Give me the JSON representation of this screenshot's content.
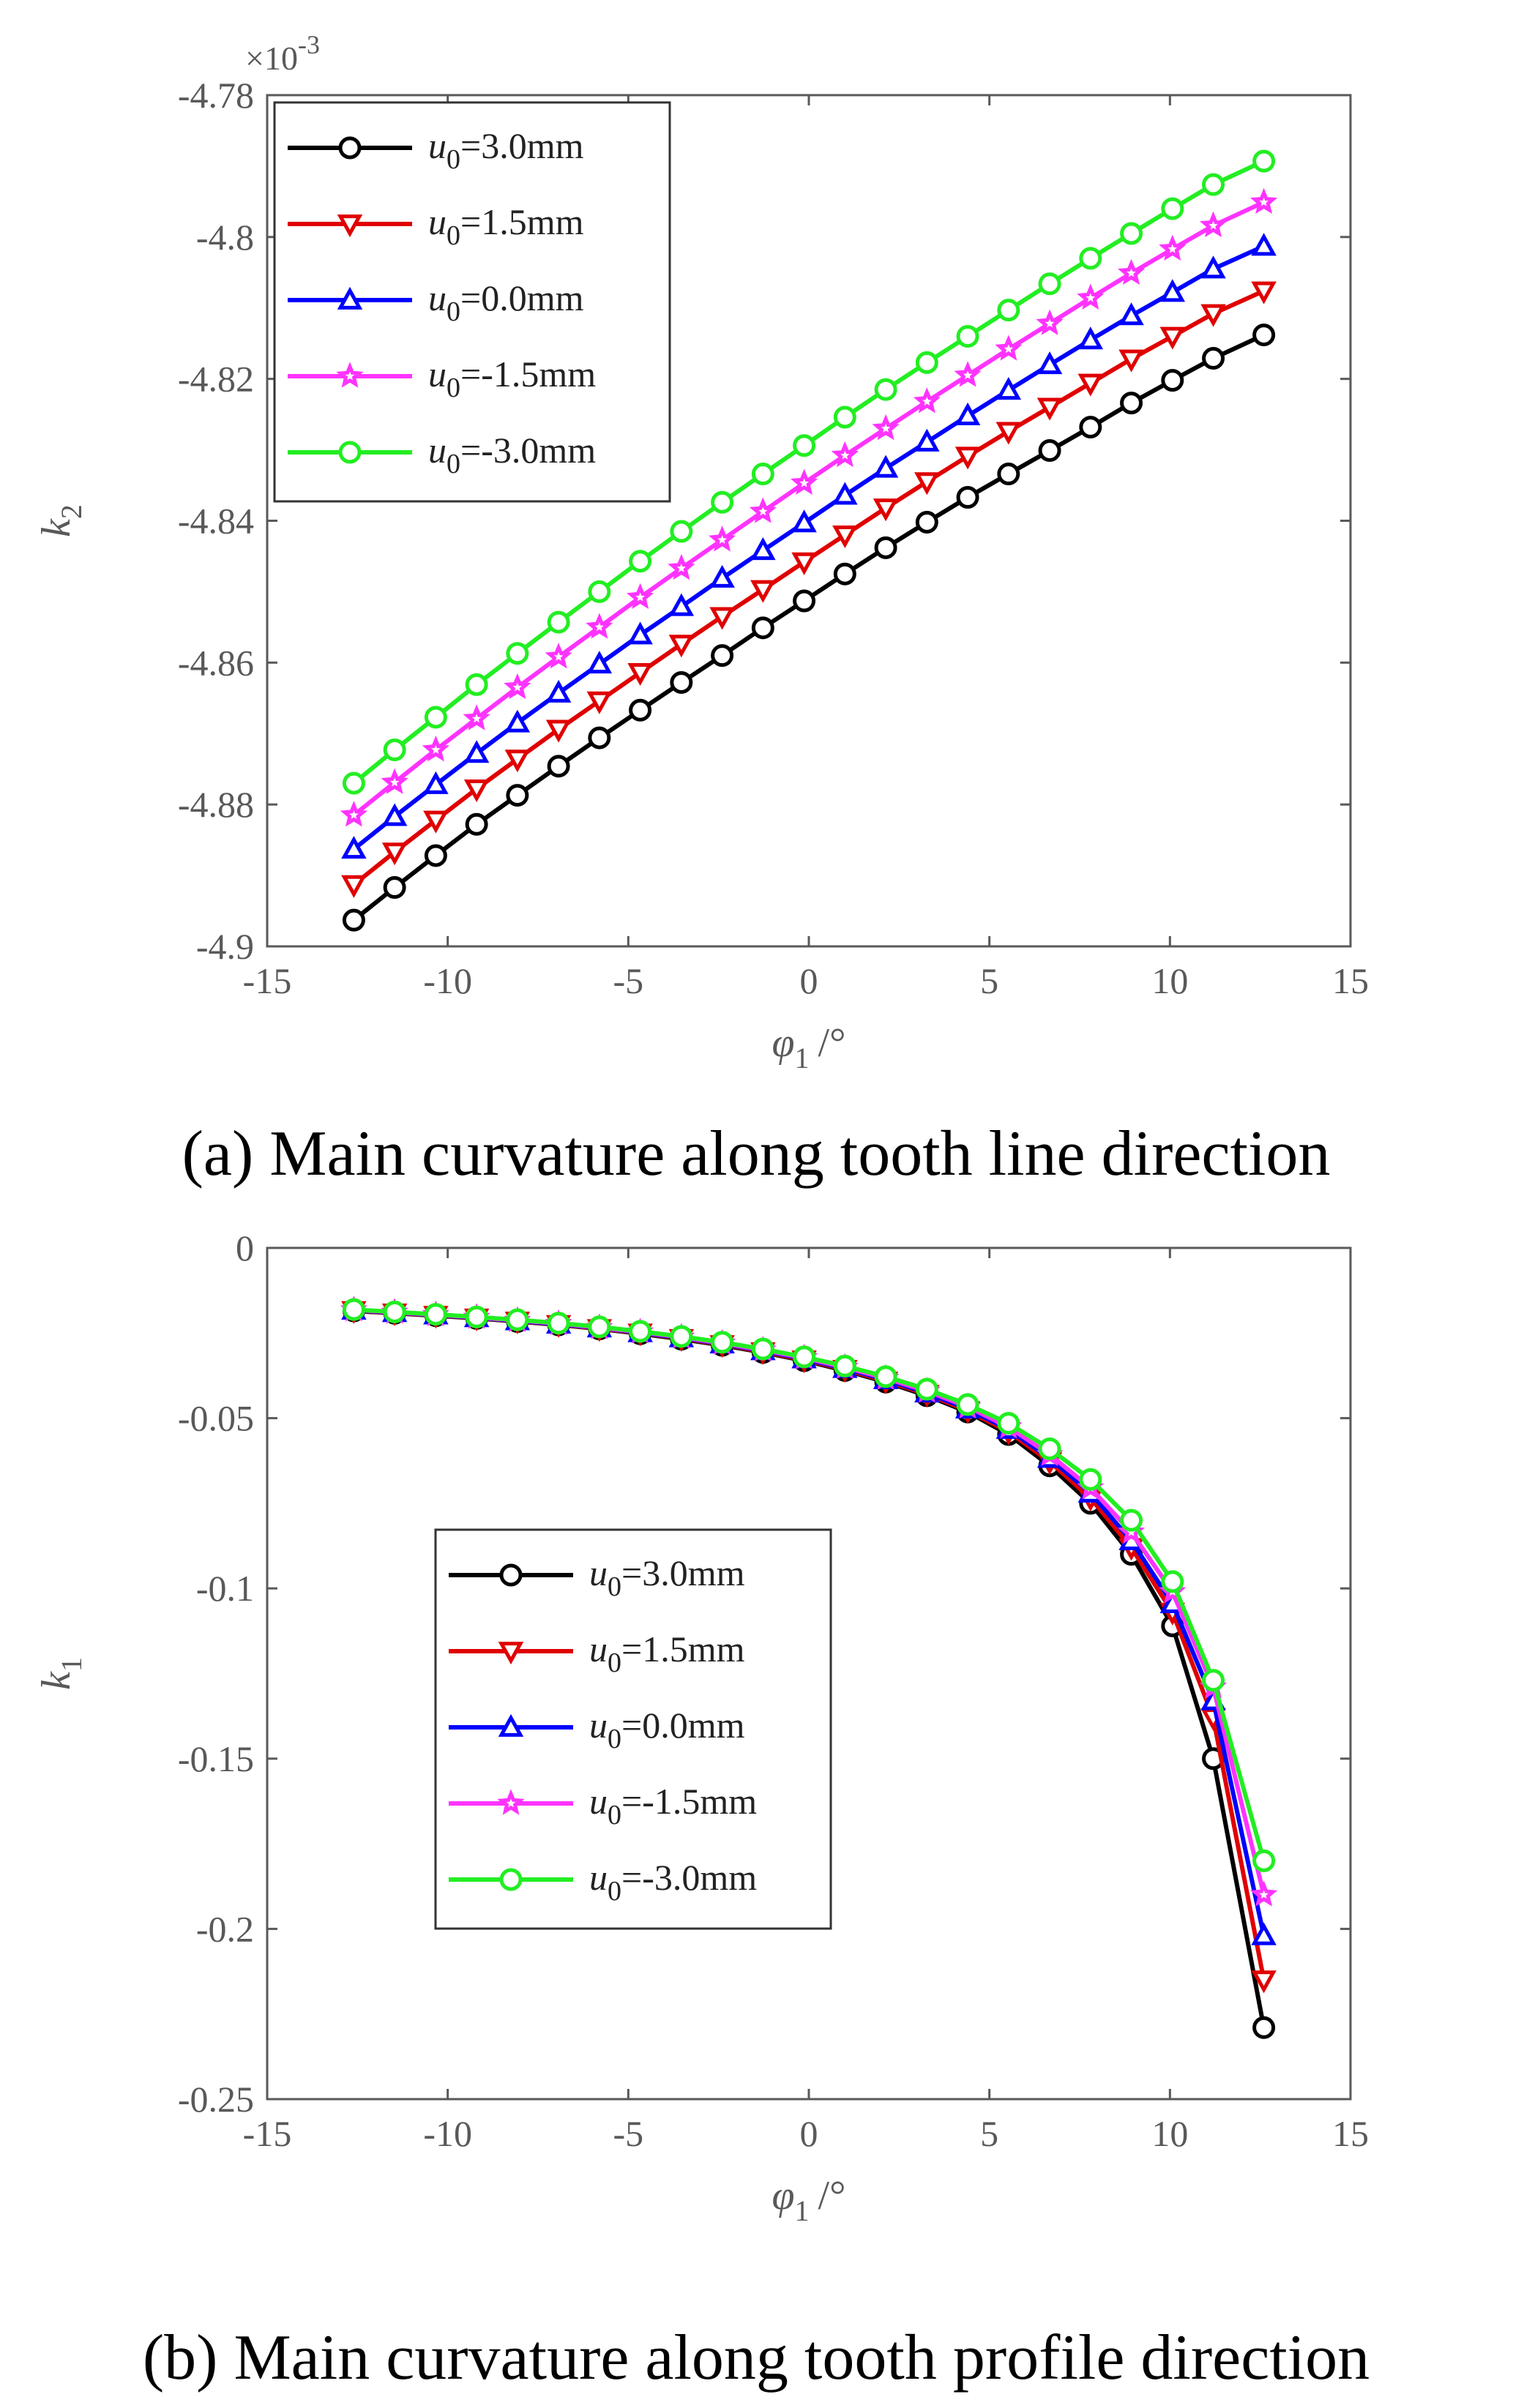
{
  "colors": {
    "axis": "#595959",
    "black": "#000000",
    "red": "#e00000",
    "blue": "#0000ff",
    "magenta": "#ff33ff",
    "green": "#22ee22"
  },
  "chart_data": [
    {
      "type": "line",
      "caption": "(a) Main curvature along tooth line direction",
      "xlabel": "φ1 /°",
      "ylabel": "k2",
      "y_multiplier": "×10-3",
      "xlim": [
        -15,
        15
      ],
      "ylim": [
        -4.9,
        -4.78
      ],
      "xticks": [
        "-15",
        "-10",
        "-5",
        "0",
        "5",
        "10",
        "15"
      ],
      "yticks": [
        "-4.9",
        "-4.88",
        "-4.86",
        "-4.84",
        "-4.82",
        "-4.8",
        "-4.78"
      ],
      "legend_position": "top-left",
      "grid": true,
      "x": [
        -12.6,
        -11.47,
        -10.33,
        -9.2,
        -8.07,
        -6.93,
        -5.8,
        -4.67,
        -3.53,
        -2.4,
        -1.27,
        -0.13,
        1.0,
        2.13,
        3.27,
        4.4,
        5.53,
        6.67,
        7.8,
        8.93,
        10.07,
        11.2,
        12.6
      ],
      "series": [
        {
          "name": "u0=3.0mm",
          "color": "black",
          "marker": "circle",
          "values": [
            -4.8963,
            -4.8917,
            -4.8872,
            -4.8828,
            -4.8787,
            -4.8746,
            -4.8706,
            -4.8667,
            -4.8628,
            -4.859,
            -4.8551,
            -4.8513,
            -4.8475,
            -4.8438,
            -4.8402,
            -4.8367,
            -4.8334,
            -4.8301,
            -4.8268,
            -4.8234,
            -4.8202,
            -4.8171,
            -4.8138
          ]
        },
        {
          "name": "u0=1.5mm",
          "color": "red",
          "marker": "triangle-down",
          "values": [
            -4.8913,
            -4.8867,
            -4.8822,
            -4.8778,
            -4.8736,
            -4.8694,
            -4.8654,
            -4.8614,
            -4.8574,
            -4.8535,
            -4.8497,
            -4.8458,
            -4.842,
            -4.8382,
            -4.8345,
            -4.8309,
            -4.8274,
            -4.824,
            -4.8206,
            -4.8172,
            -4.814,
            -4.8108,
            -4.8076
          ]
        },
        {
          "name": "u0=0.0mm",
          "color": "blue",
          "marker": "triangle-up",
          "values": [
            -4.8863,
            -4.8817,
            -4.8772,
            -4.8728,
            -4.8685,
            -4.8643,
            -4.8602,
            -4.8561,
            -4.8521,
            -4.8481,
            -4.8442,
            -4.8403,
            -4.8364,
            -4.8326,
            -4.8289,
            -4.8252,
            -4.8216,
            -4.818,
            -4.8145,
            -4.8111,
            -4.8078,
            -4.8045,
            -4.8013
          ]
        },
        {
          "name": "u0=-1.5mm",
          "color": "magenta",
          "marker": "star",
          "values": [
            -4.8815,
            -4.8769,
            -4.8723,
            -4.8679,
            -4.8635,
            -4.8592,
            -4.855,
            -4.8508,
            -4.8467,
            -4.8427,
            -4.8387,
            -4.8347,
            -4.8308,
            -4.827,
            -4.8232,
            -4.8195,
            -4.8158,
            -4.8122,
            -4.8086,
            -4.8051,
            -4.8017,
            -4.7984,
            -4.7951
          ]
        },
        {
          "name": "u0=-3.0mm",
          "color": "green",
          "marker": "circle",
          "values": [
            -4.877,
            -4.8723,
            -4.8677,
            -4.8631,
            -4.8587,
            -4.8543,
            -4.85,
            -4.8457,
            -4.8415,
            -4.8374,
            -4.8334,
            -4.8294,
            -4.8254,
            -4.8215,
            -4.8177,
            -4.814,
            -4.8103,
            -4.8066,
            -4.803,
            -4.7995,
            -4.796,
            -4.7926,
            -4.7893
          ]
        }
      ]
    },
    {
      "type": "line",
      "caption": "(b) Main curvature along tooth profile direction",
      "xlabel": "φ1 /°",
      "ylabel": "k1",
      "xlim": [
        -15,
        15
      ],
      "ylim": [
        -0.25,
        0
      ],
      "xticks": [
        "-15",
        "-10",
        "-5",
        "0",
        "5",
        "10",
        "15"
      ],
      "yticks": [
        "-0.25",
        "-0.2",
        "-0.15",
        "-0.1",
        "-0.05",
        "0"
      ],
      "legend_position": "center-left",
      "grid": true,
      "x": [
        -12.6,
        -11.47,
        -10.33,
        -9.2,
        -8.07,
        -6.93,
        -5.8,
        -4.67,
        -3.53,
        -2.4,
        -1.27,
        -0.13,
        1.0,
        2.13,
        3.27,
        4.4,
        5.53,
        6.67,
        7.8,
        8.93,
        10.07,
        11.2,
        12.6
      ],
      "series": [
        {
          "name": "u0=3.0mm",
          "color": "black",
          "marker": "circle",
          "values": [
            -0.0185,
            -0.0192,
            -0.0199,
            -0.0207,
            -0.0216,
            -0.0226,
            -0.0238,
            -0.0252,
            -0.0268,
            -0.0286,
            -0.0307,
            -0.0331,
            -0.036,
            -0.0394,
            -0.0434,
            -0.0482,
            -0.0548,
            -0.064,
            -0.075,
            -0.09,
            -0.111,
            -0.15,
            -0.229
          ]
        },
        {
          "name": "u0=1.5mm",
          "color": "red",
          "marker": "triangle-down",
          "values": [
            -0.0184,
            -0.0191,
            -0.0198,
            -0.0206,
            -0.0215,
            -0.0225,
            -0.0237,
            -0.025,
            -0.0266,
            -0.0284,
            -0.0305,
            -0.0329,
            -0.0357,
            -0.0391,
            -0.043,
            -0.0478,
            -0.054,
            -0.0628,
            -0.0735,
            -0.088,
            -0.107,
            -0.138,
            -0.215
          ]
        },
        {
          "name": "u0=0.0mm",
          "color": "blue",
          "marker": "triangle-up",
          "values": [
            -0.0183,
            -0.019,
            -0.0197,
            -0.0205,
            -0.0214,
            -0.0224,
            -0.0235,
            -0.0249,
            -0.0264,
            -0.0282,
            -0.0302,
            -0.0326,
            -0.0354,
            -0.0387,
            -0.0426,
            -0.0473,
            -0.0533,
            -0.0618,
            -0.072,
            -0.086,
            -0.1045,
            -0.133,
            -0.202
          ]
        },
        {
          "name": "u0=-1.5mm",
          "color": "magenta",
          "marker": "star",
          "values": [
            -0.0182,
            -0.0189,
            -0.0196,
            -0.0204,
            -0.0213,
            -0.0222,
            -0.0234,
            -0.0247,
            -0.0262,
            -0.028,
            -0.03,
            -0.0323,
            -0.0351,
            -0.0383,
            -0.0421,
            -0.0467,
            -0.0526,
            -0.0607,
            -0.0705,
            -0.0835,
            -0.101,
            -0.129,
            -0.19
          ]
        },
        {
          "name": "u0=-3.0mm",
          "color": "green",
          "marker": "circle",
          "values": [
            -0.0181,
            -0.0188,
            -0.0195,
            -0.0203,
            -0.0211,
            -0.0221,
            -0.0232,
            -0.0245,
            -0.026,
            -0.0277,
            -0.0297,
            -0.032,
            -0.0347,
            -0.0378,
            -0.0415,
            -0.046,
            -0.0515,
            -0.059,
            -0.068,
            -0.08,
            -0.098,
            -0.127,
            -0.18
          ]
        }
      ]
    }
  ]
}
